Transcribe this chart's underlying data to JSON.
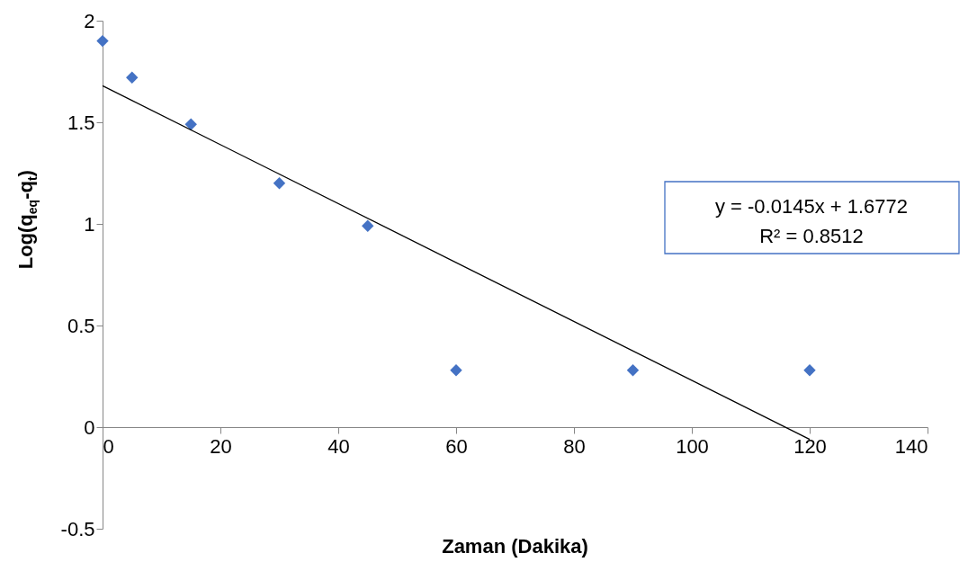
{
  "chart_data": {
    "type": "scatter",
    "xlabel": "Zaman (Dakika)",
    "ylabel": "Log(q$_{eq}$-q$_{t}$)",
    "xlim": [
      0,
      140
    ],
    "xticks": [
      0,
      20,
      40,
      60,
      80,
      100,
      120,
      140
    ],
    "ylim": [
      -0.5,
      2
    ],
    "yticks": [
      -0.5,
      {
        "value": 0,
        "label": "0"
      },
      0.5,
      {
        "value": 1,
        "label": "1"
      },
      1.5,
      {
        "value": 2,
        "label": "2"
      }
    ],
    "grid": false,
    "legend": false,
    "marker": "diamond",
    "series": [
      {
        "color": "#4472c4",
        "x": [
          0,
          5,
          15,
          30,
          45,
          60,
          90,
          120
        ],
        "values": [
          1.9,
          1.72,
          1.49,
          1.2,
          0.99,
          0.28,
          0.28,
          0.28
        ]
      },
      {
        "type": "line",
        "color": "#000000",
        "x": [
          0,
          120
        ],
        "values": [
          1.68,
          -0.06
        ],
        "marker": "none",
        "line_style": "solid"
      }
    ],
    "annotations": [
      "y = -0.0145x + 1.6772",
      "R² = 0.8512"
    ]
  }
}
